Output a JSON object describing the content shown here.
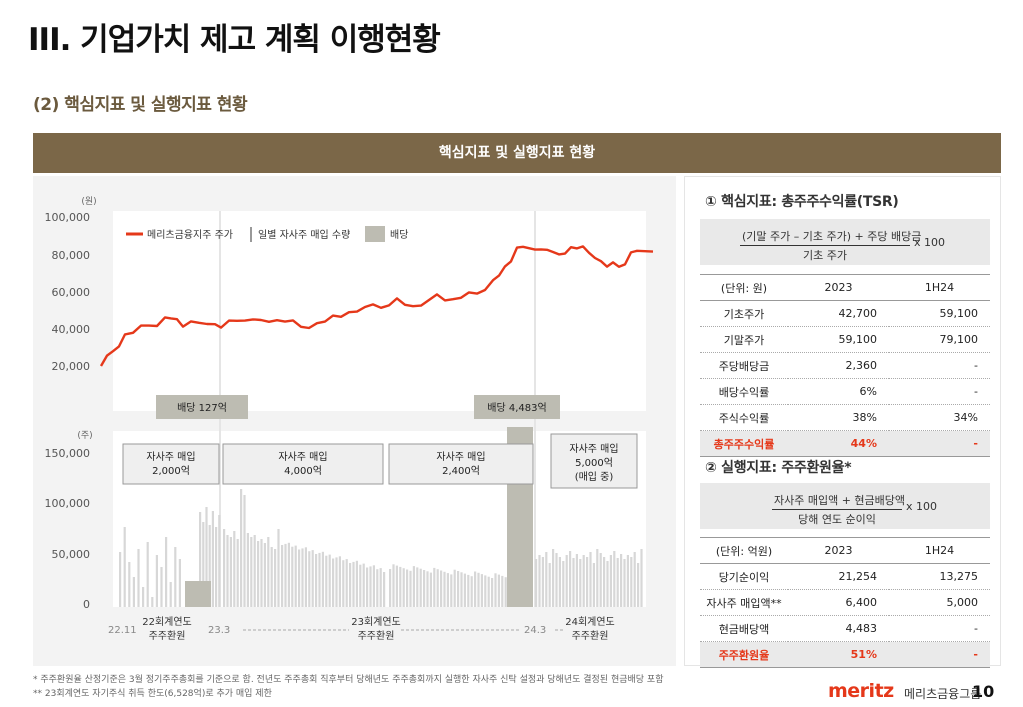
{
  "page_title": "III. 기업가치 제고 계획 이행현황",
  "section_subtitle": "(2) 핵심지표 및 실행지표 현황",
  "banner_title": "핵심지표 및 실행지표 현황",
  "chart": {
    "price_unit": "(원)",
    "price_ticks": [
      "100,000",
      "80,000",
      "60,000",
      "40,000",
      "20,000"
    ],
    "volume_unit": "(주)",
    "volume_ticks": [
      "150,000",
      "100,000",
      "50,000",
      "0"
    ],
    "legend": {
      "price": "메리츠금융지주 주가",
      "buyback": "일별 자사주 매입 수량",
      "dividend": "배당"
    },
    "x_labels": [
      "22.11",
      "23.3",
      "24.3"
    ],
    "agm_labels": [
      {
        "line1": "22회계연도",
        "line2": "주주환원"
      },
      {
        "line1": "23회계연도",
        "line2": "주주환원"
      },
      {
        "line1": "24회계연도",
        "line2": "주주환원"
      }
    ],
    "dividend_labels": [
      "배당 127억",
      "배당 4,483억"
    ],
    "buyback_boxes": [
      {
        "line1": "자사주 매입",
        "line2": "2,000억"
      },
      {
        "line1": "자사주 매입",
        "line2": "4,000억"
      },
      {
        "line1": "자사주 매입",
        "line2": "2,400억"
      },
      {
        "line1": "자사주 매입",
        "line2": "5,000억",
        "line3": "(매입 중)"
      }
    ],
    "colors": {
      "price_line": "#e5381a",
      "volume_bar": "#d7d7d7",
      "dividend_bar": "#bdbcb2"
    }
  },
  "tsr": {
    "title": "① 핵심지표: 총주주수익률(TSR)",
    "formula_numerator": "(기말 주가 – 기초 주가) + 주당 배당금",
    "formula_denominator": "기초 주가",
    "formula_multiplier": "x 100",
    "header": [
      "(단위: 원)",
      "2023",
      "1H24"
    ],
    "rows": [
      [
        "기초주가",
        "42,700",
        "59,100"
      ],
      [
        "기말주가",
        "59,100",
        "79,100"
      ],
      [
        "주당배당금",
        "2,360",
        "-"
      ],
      [
        "배당수익률",
        "6%",
        "-"
      ],
      [
        "주식수익률",
        "38%",
        "34%"
      ]
    ],
    "highlight_row": [
      "총주주수익률",
      "44%",
      "-"
    ]
  },
  "sh_return": {
    "title": "② 실행지표: 주주환원율*",
    "formula_numerator": "자사주 매입액 + 현금배당액",
    "formula_denominator": "당해 연도 순이익",
    "formula_multiplier": "x 100",
    "header": [
      "(단위: 억원)",
      "2023",
      "1H24"
    ],
    "rows": [
      [
        "당기순이익",
        "21,254",
        "13,275"
      ],
      [
        "자사주 매입액**",
        "6,400",
        "5,000"
      ],
      [
        "현금배당액",
        "4,483",
        "-"
      ]
    ],
    "highlight_row": [
      "주주환원율",
      "51%",
      "-"
    ]
  },
  "footnotes": [
    "* 주주환원율 산정기준은 3월 정기주주총회를 기준으로 함. 전년도 주주총회 직후부터 당해년도 주주총회까지 실행한 자사주 신탁 설정과 당해년도 결정된 현금배당 포함",
    "** 23회계연도 자기주식 취득 한도(6,528억)로 추가 매입 제한"
  ],
  "footer": {
    "logo": "meritz",
    "company": "메리츠금융그룹",
    "page": "10"
  }
}
